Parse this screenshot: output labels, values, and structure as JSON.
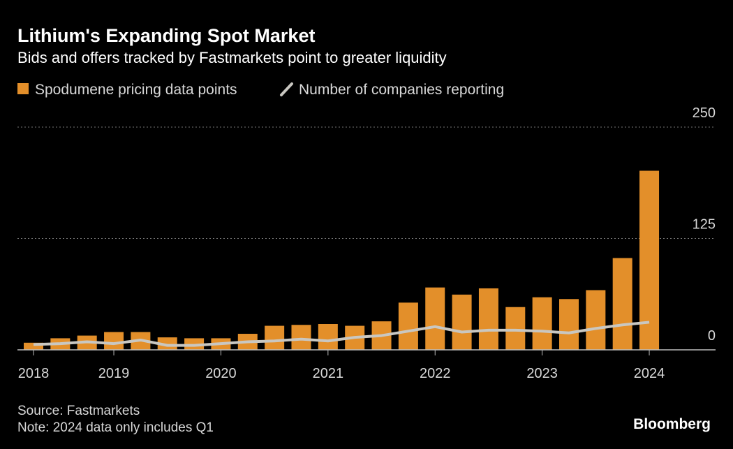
{
  "chart_data": {
    "type": "bar",
    "title": "Lithium's Expanding Spot Market",
    "subtitle": "Bids and offers tracked by Fastmarkets point to greater liquidity",
    "categories": [
      "2018",
      null,
      null,
      "2019",
      null,
      null,
      null,
      "2020",
      null,
      null,
      null,
      "2021",
      null,
      null,
      null,
      "2022",
      null,
      null,
      null,
      "2023",
      null,
      null,
      null,
      "2024"
    ],
    "series": [
      {
        "name": "Spodumene pricing data points",
        "color": "#e38f2a",
        "values": [
          8,
          13,
          16,
          20,
          20,
          14,
          13,
          13,
          18,
          27,
          28,
          29,
          27,
          32,
          53,
          70,
          62,
          69,
          48,
          59,
          57,
          67,
          103,
          201
        ]
      },
      {
        "name": "Number of companies reporting",
        "type": "line",
        "color": "#c9c7c1",
        "values": [
          6,
          7,
          9,
          7,
          11,
          5,
          5,
          7,
          9,
          10,
          12,
          10,
          14,
          16,
          21,
          26,
          20,
          22,
          22,
          21,
          19,
          24,
          28,
          31
        ]
      }
    ],
    "ylim": [
      0,
      250
    ],
    "yticks": [
      0,
      125,
      250
    ],
    "grid": true,
    "source": "Source: Fastmarkets",
    "note": "Note: 2024 data only includes Q1",
    "brand": "Bloomberg"
  }
}
